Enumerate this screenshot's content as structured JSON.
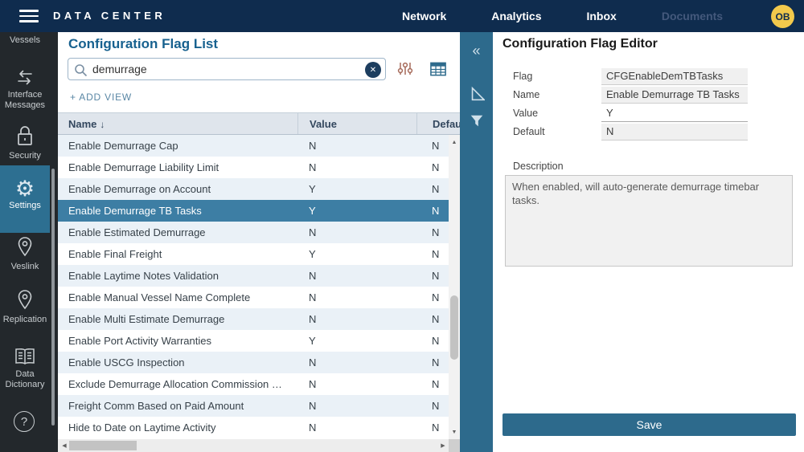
{
  "navbar": {
    "title": "DATA CENTER",
    "items": [
      {
        "label": "Network",
        "state": "enabled"
      },
      {
        "label": "Analytics",
        "state": "enabled"
      },
      {
        "label": "Inbox",
        "state": "enabled"
      },
      {
        "label": "Documents",
        "state": "disabled"
      }
    ],
    "avatar": "OB"
  },
  "sidebar": {
    "items": [
      {
        "id": "vessels",
        "label": "Vessels"
      },
      {
        "id": "interface-messages",
        "label": "Interface Messages",
        "label_line1": "Interface",
        "label_line2": "Messages"
      },
      {
        "id": "security",
        "label": "Security"
      },
      {
        "id": "settings",
        "label": "Settings",
        "active": true
      },
      {
        "id": "veslink",
        "label": "Veslink"
      },
      {
        "id": "replication",
        "label": "Replication"
      },
      {
        "id": "data-dictionary",
        "label": "Data Dictionary",
        "label_line1": "Data",
        "label_line2": "Dictionary"
      },
      {
        "id": "help",
        "label": "?"
      }
    ]
  },
  "list_panel": {
    "title": "Configuration Flag List",
    "search": {
      "value": "demurrage",
      "clear_glyph": "✕"
    },
    "add_view_label": "+ ADD VIEW",
    "table": {
      "columns": [
        "Name",
        "Value",
        "Default"
      ],
      "sort": {
        "column": "Name",
        "direction": "desc",
        "glyph": "↓"
      },
      "rows": [
        {
          "name": "Enable Demurrage Cap",
          "value": "N",
          "default": "N",
          "selected": false
        },
        {
          "name": "Enable Demurrage Liability Limit",
          "value": "N",
          "default": "N",
          "selected": false
        },
        {
          "name": "Enable Demurrage on Account",
          "value": "Y",
          "default": "N",
          "selected": false
        },
        {
          "name": "Enable Demurrage TB Tasks",
          "value": "Y",
          "default": "N",
          "selected": true
        },
        {
          "name": "Enable Estimated Demurrage",
          "value": "N",
          "default": "N",
          "selected": false
        },
        {
          "name": "Enable Final Freight",
          "value": "Y",
          "default": "N",
          "selected": false
        },
        {
          "name": "Enable Laytime Notes Validation",
          "value": "N",
          "default": "N",
          "selected": false
        },
        {
          "name": "Enable Manual Vessel Name Complete",
          "value": "N",
          "default": "N",
          "selected": false
        },
        {
          "name": "Enable Multi Estimate Demurrage",
          "value": "N",
          "default": "N",
          "selected": false
        },
        {
          "name": "Enable Port Activity Warranties",
          "value": "Y",
          "default": "N",
          "selected": false
        },
        {
          "name": "Enable USCG Inspection",
          "value": "N",
          "default": "N",
          "selected": false
        },
        {
          "name": "Exclude Demurrage Allocation Commission …",
          "value": "N",
          "default": "N",
          "selected": false
        },
        {
          "name": "Freight Comm Based on Paid Amount",
          "value": "N",
          "default": "N",
          "selected": false
        },
        {
          "name": "Hide to Date on Laytime Activity",
          "value": "N",
          "default": "N",
          "selected": false
        }
      ]
    },
    "scrollbar_glyphs": {
      "up": "▲",
      "down": "▼",
      "left": "◀",
      "right": "▶"
    }
  },
  "strip": {
    "collapse_glyph": "«"
  },
  "editor_panel": {
    "title": "Configuration Flag Editor",
    "fields": [
      {
        "label": "Flag",
        "value": "CFGEnableDemTBTasks",
        "readonly": true
      },
      {
        "label": "Name",
        "value": "Enable Demurrage TB Tasks",
        "readonly": true
      },
      {
        "label": "Value",
        "value": "Y",
        "readonly": false
      },
      {
        "label": "Default",
        "value": "N",
        "readonly": true
      }
    ],
    "description_label": "Description",
    "description_value": "When enabled, will auto-generate demurrage timebar tasks.",
    "save_label": "Save"
  },
  "icons_misc": {
    "gear_glyph": "⚙"
  },
  "colors": {
    "navbar_bg": "#0f2c4e",
    "sidebar_bg": "#23282c",
    "accent_teal": "#2d6a8c",
    "selected_row": "#3d7ea4",
    "title_blue": "#17618f",
    "avatar_yellow": "#f2c94c",
    "header_bg": "#dfe5ec",
    "row_alt": "#eaf1f7"
  }
}
